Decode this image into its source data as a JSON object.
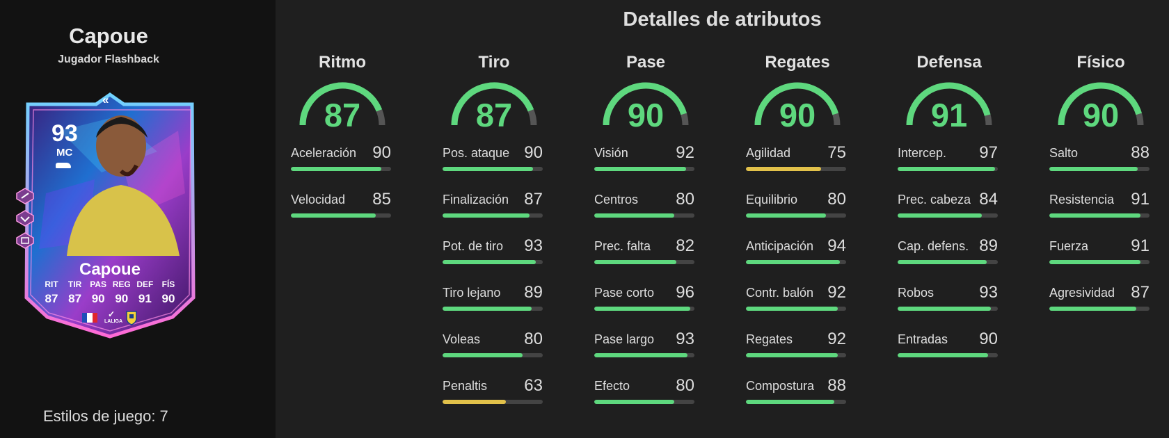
{
  "player": {
    "name": "Capoue",
    "subtitle": "Jugador Flashback",
    "styles_label": "Estilos de juego: 7"
  },
  "card": {
    "rating": "93",
    "position": "MC",
    "name": "Capoue",
    "stats": [
      {
        "key": "RIT",
        "value": "87"
      },
      {
        "key": "TIR",
        "value": "87"
      },
      {
        "key": "PAS",
        "value": "90"
      },
      {
        "key": "REG",
        "value": "90"
      },
      {
        "key": "DEF",
        "value": "91"
      },
      {
        "key": "FÍS",
        "value": "90"
      }
    ],
    "league_text": "LALIGA",
    "icons": [
      "chevron-up-icon",
      "boot-icon",
      "playstyle-icon",
      "france-flag-icon",
      "laliga-logo-icon",
      "villarreal-crest-icon"
    ]
  },
  "title": "Detalles de atributos",
  "colors": {
    "good": "#5ed87e",
    "mid": "#e2c14a",
    "track": "#444444",
    "background": "#1f1f1f",
    "panel": "#121212"
  },
  "categories": [
    {
      "name": "Ritmo",
      "rating": 87,
      "attrs": [
        {
          "label": "Aceleración",
          "value": 90
        },
        {
          "label": "Velocidad",
          "value": 85
        }
      ]
    },
    {
      "name": "Tiro",
      "rating": 87,
      "attrs": [
        {
          "label": "Pos. ataque",
          "value": 90
        },
        {
          "label": "Finalización",
          "value": 87
        },
        {
          "label": "Pot. de tiro",
          "value": 93
        },
        {
          "label": "Tiro lejano",
          "value": 89
        },
        {
          "label": "Voleas",
          "value": 80
        },
        {
          "label": "Penaltis",
          "value": 63
        }
      ]
    },
    {
      "name": "Pase",
      "rating": 90,
      "attrs": [
        {
          "label": "Visión",
          "value": 92
        },
        {
          "label": "Centros",
          "value": 80
        },
        {
          "label": "Prec. falta",
          "value": 82
        },
        {
          "label": "Pase corto",
          "value": 96
        },
        {
          "label": "Pase largo",
          "value": 93
        },
        {
          "label": "Efecto",
          "value": 80
        }
      ]
    },
    {
      "name": "Regates",
      "rating": 90,
      "attrs": [
        {
          "label": "Agilidad",
          "value": 75
        },
        {
          "label": "Equilibrio",
          "value": 80
        },
        {
          "label": "Anticipación",
          "value": 94
        },
        {
          "label": "Contr. balón",
          "value": 92
        },
        {
          "label": "Regates",
          "value": 92
        },
        {
          "label": "Compostura",
          "value": 88
        }
      ]
    },
    {
      "name": "Defensa",
      "rating": 91,
      "attrs": [
        {
          "label": "Intercep.",
          "value": 97
        },
        {
          "label": "Prec. cabeza",
          "value": 84
        },
        {
          "label": "Cap. defens.",
          "value": 89
        },
        {
          "label": "Robos",
          "value": 93
        },
        {
          "label": "Entradas",
          "value": 90
        }
      ]
    },
    {
      "name": "Físico",
      "rating": 90,
      "attrs": [
        {
          "label": "Salto",
          "value": 88
        },
        {
          "label": "Resistencia",
          "value": 91
        },
        {
          "label": "Fuerza",
          "value": 91
        },
        {
          "label": "Agresividad",
          "value": 87
        }
      ]
    }
  ]
}
